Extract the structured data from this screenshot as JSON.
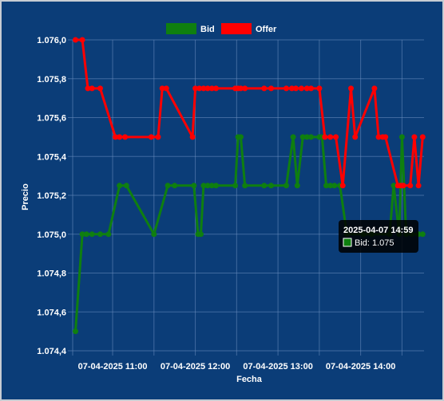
{
  "colors": {
    "background": "#0b3d78",
    "bid": "#0f7f10",
    "offer": "#ff0000",
    "grid": "#6d8fbf"
  },
  "legend": {
    "bid_label": "Bid",
    "offer_label": "Offer"
  },
  "tooltip": {
    "title": "2025-04-07 14:59",
    "label": "Bid: 1.075"
  },
  "chart_data": {
    "type": "line",
    "xlabel": "Fecha",
    "ylabel": "Precio",
    "ylim": [
      1.0744,
      1.0761
    ],
    "xlim": [
      "2025-04-07 10:31",
      "2025-04-07 14:46"
    ],
    "yticks": [
      "1.074,4",
      "1.074,6",
      "1.074,8",
      "1.075,0",
      "1.075,2",
      "1.075,4",
      "1.075,6",
      "1.075,8",
      "1.076,0"
    ],
    "xticks": [
      {
        "t": "2025-04-07 11:00",
        "label": "07-04-2025  11:00"
      },
      {
        "t": "2025-04-07 12:00",
        "label": "07-04-2025  12:00"
      },
      {
        "t": "2025-04-07 13:00",
        "label": "07-04-2025  13:00"
      },
      {
        "t": "2025-04-07 14:00",
        "label": "07-04-2025  14:00"
      }
    ],
    "grid": true,
    "legend_position": "top",
    "series": [
      {
        "name": "Bid",
        "points": [
          [
            "2025-04-07 10:33",
            1.0745
          ],
          [
            "2025-04-07 10:38",
            1.075
          ],
          [
            "2025-04-07 10:41",
            1.075
          ],
          [
            "2025-04-07 10:45",
            1.075
          ],
          [
            "2025-04-07 10:51",
            1.075
          ],
          [
            "2025-04-07 10:57",
            1.075
          ],
          [
            "2025-04-07 11:05",
            1.07525
          ],
          [
            "2025-04-07 11:10",
            1.07525
          ],
          [
            "2025-04-07 11:30",
            1.075
          ],
          [
            "2025-04-07 11:40",
            1.07525
          ],
          [
            "2025-04-07 11:45",
            1.07525
          ],
          [
            "2025-04-07 11:59",
            1.07525
          ],
          [
            "2025-04-07 12:02",
            1.075
          ],
          [
            "2025-04-07 12:04",
            1.075
          ],
          [
            "2025-04-07 12:06",
            1.07525
          ],
          [
            "2025-04-07 12:09",
            1.07525
          ],
          [
            "2025-04-07 12:12",
            1.07525
          ],
          [
            "2025-04-07 12:15",
            1.07525
          ],
          [
            "2025-04-07 12:29",
            1.07525
          ],
          [
            "2025-04-07 12:31",
            1.0755
          ],
          [
            "2025-04-07 12:33",
            1.0755
          ],
          [
            "2025-04-07 12:36",
            1.07525
          ],
          [
            "2025-04-07 12:50",
            1.07525
          ],
          [
            "2025-04-07 12:55",
            1.07525
          ],
          [
            "2025-04-07 13:06",
            1.07525
          ],
          [
            "2025-04-07 13:11",
            1.0755
          ],
          [
            "2025-04-07 13:14",
            1.07525
          ],
          [
            "2025-04-07 13:18",
            1.0755
          ],
          [
            "2025-04-07 13:21",
            1.0755
          ],
          [
            "2025-04-07 13:24",
            1.0755
          ],
          [
            "2025-04-07 13:30",
            1.0755
          ],
          [
            "2025-04-07 13:32",
            1.0755
          ],
          [
            "2025-04-07 13:35",
            1.07525
          ],
          [
            "2025-04-07 13:38",
            1.07525
          ],
          [
            "2025-04-07 13:41",
            1.07525
          ],
          [
            "2025-04-07 13:45",
            1.07525
          ],
          [
            "2025-04-07 13:50",
            1.075
          ],
          [
            "2025-04-07 14:02",
            1.075
          ],
          [
            "2025-04-07 14:08",
            1.075
          ],
          [
            "2025-04-07 14:21",
            1.075
          ],
          [
            "2025-04-07 14:24",
            1.07525
          ],
          [
            "2025-04-07 14:28",
            1.075
          ],
          [
            "2025-04-07 14:30",
            1.0755
          ],
          [
            "2025-04-07 14:33",
            1.075
          ],
          [
            "2025-04-07 14:37",
            1.075
          ],
          [
            "2025-04-07 14:42",
            1.075
          ],
          [
            "2025-04-07 14:45",
            1.075
          ]
        ]
      },
      {
        "name": "Offer",
        "points": [
          [
            "2025-04-07 10:33",
            1.076
          ],
          [
            "2025-04-07 10:38",
            1.076
          ],
          [
            "2025-04-07 10:42",
            1.07575
          ],
          [
            "2025-04-07 10:45",
            1.07575
          ],
          [
            "2025-04-07 10:51",
            1.07575
          ],
          [
            "2025-04-07 11:02",
            1.0755
          ],
          [
            "2025-04-07 11:05",
            1.0755
          ],
          [
            "2025-04-07 11:09",
            1.0755
          ],
          [
            "2025-04-07 11:28",
            1.0755
          ],
          [
            "2025-04-07 11:33",
            1.0755
          ],
          [
            "2025-04-07 11:36",
            1.07575
          ],
          [
            "2025-04-07 11:39",
            1.07575
          ],
          [
            "2025-04-07 11:58",
            1.0755
          ],
          [
            "2025-04-07 12:00",
            1.07575
          ],
          [
            "2025-04-07 12:03",
            1.07575
          ],
          [
            "2025-04-07 12:06",
            1.07575
          ],
          [
            "2025-04-07 12:09",
            1.07575
          ],
          [
            "2025-04-07 12:12",
            1.07575
          ],
          [
            "2025-04-07 12:15",
            1.07575
          ],
          [
            "2025-04-07 12:29",
            1.07575
          ],
          [
            "2025-04-07 12:31",
            1.07575
          ],
          [
            "2025-04-07 12:33",
            1.07575
          ],
          [
            "2025-04-07 12:36",
            1.07575
          ],
          [
            "2025-04-07 12:50",
            1.07575
          ],
          [
            "2025-04-07 12:55",
            1.07575
          ],
          [
            "2025-04-07 13:06",
            1.07575
          ],
          [
            "2025-04-07 13:10",
            1.07575
          ],
          [
            "2025-04-07 13:13",
            1.07575
          ],
          [
            "2025-04-07 13:17",
            1.07575
          ],
          [
            "2025-04-07 13:21",
            1.07575
          ],
          [
            "2025-04-07 13:24",
            1.07575
          ],
          [
            "2025-04-07 13:30",
            1.07575
          ],
          [
            "2025-04-07 13:34",
            1.0755
          ],
          [
            "2025-04-07 13:38",
            1.0755
          ],
          [
            "2025-04-07 13:42",
            1.0755
          ],
          [
            "2025-04-07 13:47",
            1.07525
          ],
          [
            "2025-04-07 13:53",
            1.07575
          ],
          [
            "2025-04-07 13:56",
            1.0755
          ],
          [
            "2025-04-07 14:10",
            1.07575
          ],
          [
            "2025-04-07 14:13",
            1.0755
          ],
          [
            "2025-04-07 14:16",
            1.0755
          ],
          [
            "2025-04-07 14:18",
            1.0755
          ],
          [
            "2025-04-07 14:27",
            1.07525
          ],
          [
            "2025-04-07 14:29",
            1.07525
          ],
          [
            "2025-04-07 14:31",
            1.07525
          ],
          [
            "2025-04-07 14:36",
            1.07525
          ],
          [
            "2025-04-07 14:39",
            1.0755
          ],
          [
            "2025-04-07 14:42",
            1.07525
          ],
          [
            "2025-04-07 14:45",
            1.0755
          ]
        ]
      }
    ]
  }
}
